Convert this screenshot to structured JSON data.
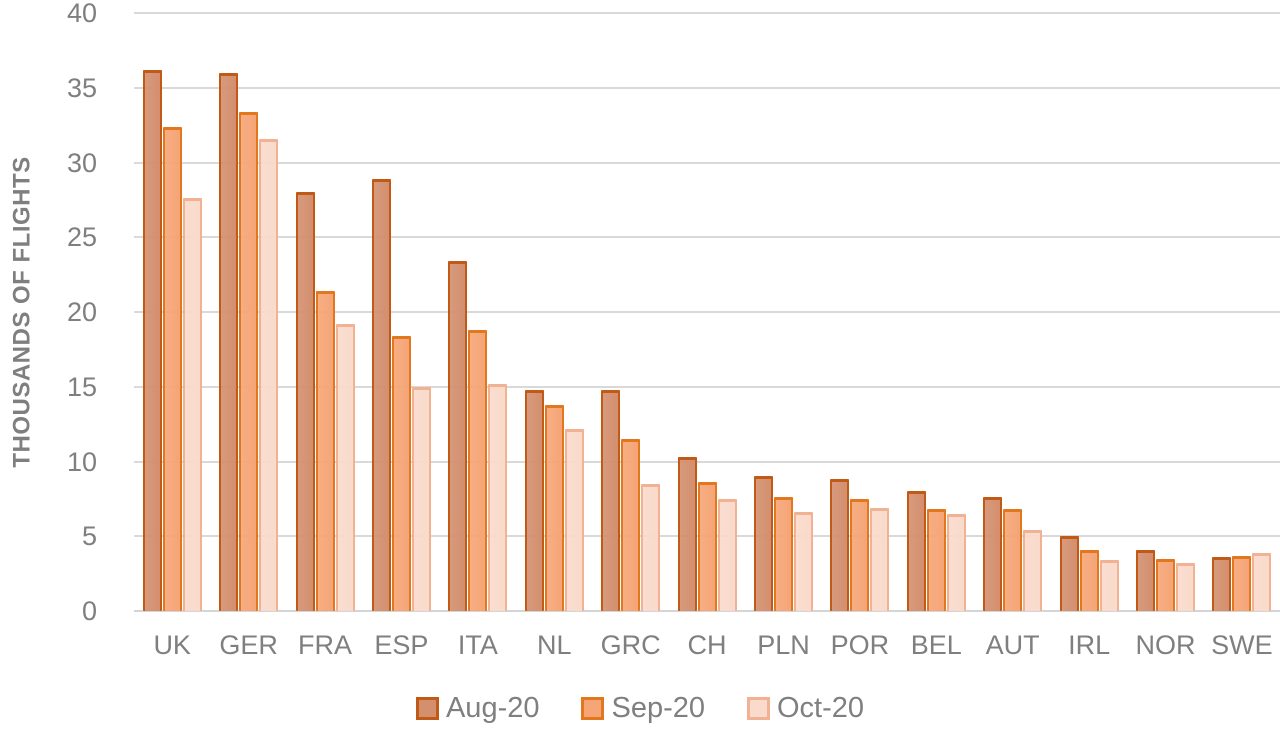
{
  "chart_data": {
    "type": "bar",
    "title": "",
    "xlabel": "",
    "ylabel": "THOUSANDS OF FLIGHTS",
    "ylim": [
      0,
      40
    ],
    "yticks": [
      0,
      5,
      10,
      15,
      20,
      25,
      30,
      35,
      40
    ],
    "grid": true,
    "legend_position": "bottom",
    "categories": [
      "UK",
      "GER",
      "FRA",
      "ESP",
      "ITA",
      "NL",
      "GRC",
      "CH",
      "PLN",
      "POR",
      "BEL",
      "AUT",
      "IRL",
      "NOR",
      "SWE"
    ],
    "series": [
      {
        "name": "Aug-20",
        "fill": "#D38F6E",
        "border": "#C05A16",
        "values": [
          36.2,
          36.0,
          28.0,
          28.9,
          23.4,
          14.8,
          14.8,
          10.3,
          9.0,
          8.8,
          8.0,
          7.6,
          5.0,
          4.1,
          3.6
        ]
      },
      {
        "name": "Sep-20",
        "fill": "#F5A576",
        "border": "#E3771D",
        "values": [
          32.4,
          33.4,
          21.4,
          18.4,
          18.8,
          13.8,
          11.5,
          8.6,
          7.6,
          7.5,
          6.8,
          6.8,
          4.1,
          3.5,
          3.7
        ]
      },
      {
        "name": "Oct-20",
        "fill": "#F9DACB",
        "border": "#F1B193",
        "values": [
          27.6,
          31.6,
          19.2,
          15.0,
          15.2,
          12.2,
          8.5,
          7.5,
          6.6,
          6.9,
          6.5,
          5.4,
          3.4,
          3.2,
          3.9
        ]
      }
    ]
  },
  "colors": {
    "gridline": "#D9D9D9",
    "axis_text": "#7F7F7F",
    "background": "#FFFFFF"
  }
}
